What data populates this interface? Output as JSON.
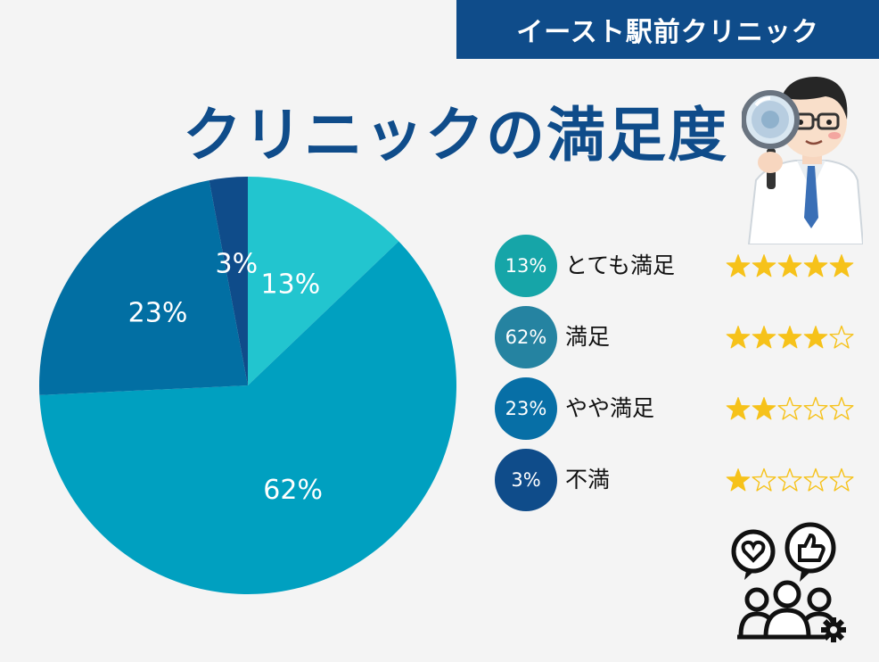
{
  "header": {
    "badge": "イースト駅前クリニック"
  },
  "title": "クリニックの満足度",
  "chart_data": {
    "type": "pie",
    "title": "クリニックの満足度",
    "slices": [
      {
        "label": "とても満足",
        "value": 13,
        "display": "13%",
        "color": "#22c5cf",
        "legend_color": "#16a5a8",
        "stars": 5
      },
      {
        "label": "満足",
        "value": 62,
        "display": "62%",
        "color": "#00a0c0",
        "legend_color": "#2583a1",
        "stars": 4
      },
      {
        "label": "やや満足",
        "value": 23,
        "display": "23%",
        "color": "#026fa3",
        "legend_color": "#076fa6",
        "stars": 2
      },
      {
        "label": "不満",
        "value": 3,
        "display": "3%",
        "color": "#0f4c8a",
        "legend_color": "#0f4c8a",
        "stars": 1
      }
    ],
    "star_color": "#f6c21a",
    "max_stars": 5
  },
  "icons": {
    "doctor": "doctor-magnifier-icon",
    "feedback": "customer-feedback-icon"
  }
}
